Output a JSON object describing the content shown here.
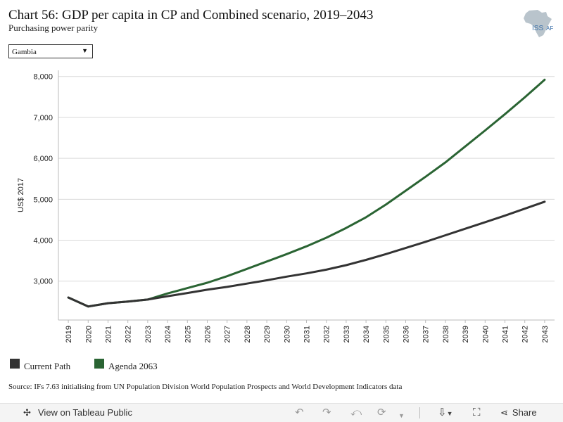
{
  "header": {
    "title": "Chart 56: GDP per capita in CP and Combined scenario, 2019–2043",
    "subtitle": "Purchasing power parity",
    "logo_text": "ISS|AFRICA"
  },
  "filter": {
    "selected": "Gambia",
    "arrow": "▼"
  },
  "chart_data": {
    "type": "line",
    "ylabel": "US$ 2017",
    "ylim": [
      2050,
      8150
    ],
    "yticks": [
      3000,
      4000,
      5000,
      6000,
      7000,
      8000
    ],
    "ytick_labels": [
      "3,000",
      "4,000",
      "5,000",
      "6,000",
      "7,000",
      "8,000"
    ],
    "x": [
      "2019",
      "2020",
      "2021",
      "2022",
      "2023",
      "2024",
      "2025",
      "2026",
      "2027",
      "2028",
      "2029",
      "2030",
      "2031",
      "2032",
      "2033",
      "2034",
      "2035",
      "2036",
      "2037",
      "2038",
      "2039",
      "2040",
      "2041",
      "2042",
      "2043"
    ],
    "grid": true,
    "legend": "bottom-left",
    "series": [
      {
        "name": "Current Path",
        "color": "#333333",
        "values": [
          2600,
          2380,
          2460,
          2500,
          2550,
          2630,
          2710,
          2790,
          2860,
          2940,
          3020,
          3110,
          3190,
          3280,
          3390,
          3520,
          3660,
          3810,
          3960,
          4120,
          4280,
          4440,
          4600,
          4770,
          4940
        ]
      },
      {
        "name": "Agenda 2063",
        "color": "#2a6433",
        "values": [
          2600,
          2380,
          2460,
          2500,
          2550,
          2700,
          2830,
          2960,
          3120,
          3300,
          3480,
          3660,
          3850,
          4060,
          4300,
          4560,
          4870,
          5210,
          5550,
          5900,
          6290,
          6680,
          7080,
          7490,
          7920
        ]
      }
    ]
  },
  "legend": {
    "items": [
      {
        "label": "Current Path",
        "color": "#333333"
      },
      {
        "label": "Agenda 2063",
        "color": "#2a6433"
      }
    ]
  },
  "source": "Source: IFs 7.63 initialising from UN Population Division World Population Prospects and World Development Indicators data",
  "footer": {
    "view_label": "View on Tableau Public",
    "share_label": "Share",
    "icons": [
      "tableau-icon",
      "undo-icon",
      "redo-icon",
      "revert-icon",
      "refresh-icon",
      "download-icon",
      "fullscreen-icon",
      "share-icon"
    ]
  }
}
